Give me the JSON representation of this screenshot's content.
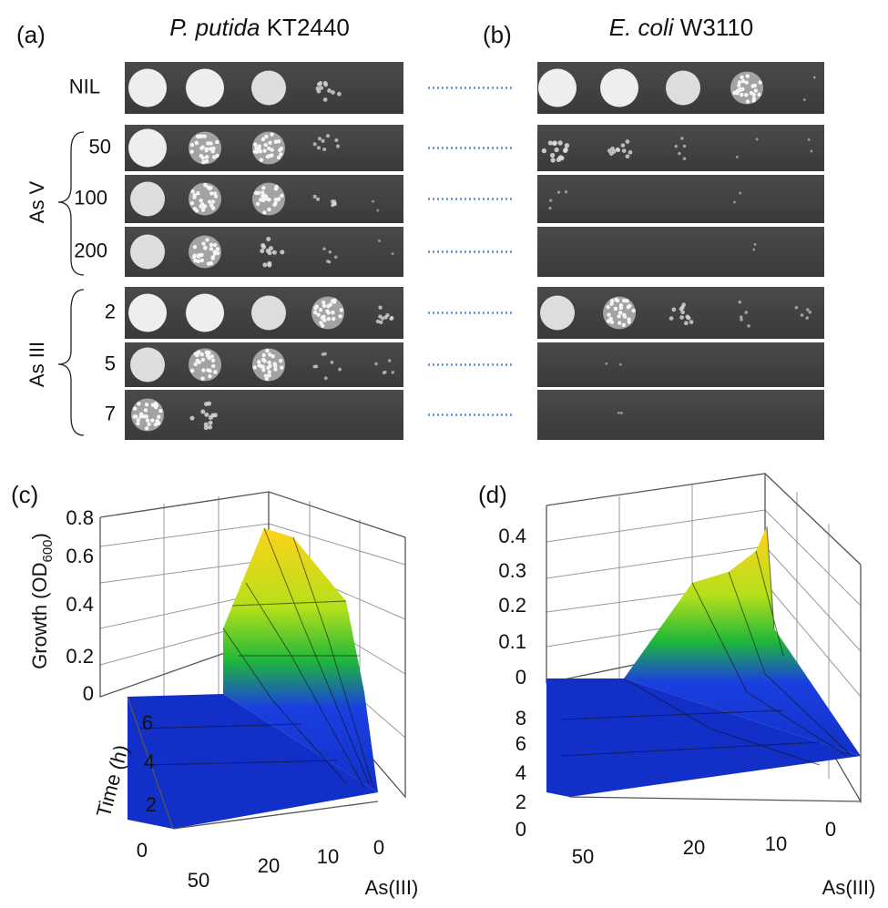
{
  "panel_a": {
    "label": "(a)",
    "title_italic": "P. putida",
    "title_rest": "KT2440"
  },
  "panel_b": {
    "label": "(b)",
    "title_italic": "E. coli",
    "title_rest": "W3110"
  },
  "rows": [
    "NIL",
    "50",
    "100",
    "200",
    "2",
    "5",
    "7"
  ],
  "groups": [
    "As V",
    "As III"
  ],
  "panel_c": {
    "label": "(c)",
    "z_label": "Growth (OD",
    "z_sub": "600",
    "z_close": ")",
    "z_ticks": [
      "0.8",
      "0.6",
      "0.4",
      "0.2",
      "0"
    ],
    "y_label": "Time (h)",
    "y_ticks": [
      "6",
      "4",
      "2",
      "0"
    ],
    "x_ticks": [
      "50",
      "20",
      "10",
      "0"
    ],
    "x_label": "As(III)"
  },
  "panel_d": {
    "label": "(d)",
    "z_ticks": [
      "0.4",
      "0.3",
      "0.2",
      "0.1",
      "0"
    ],
    "y_ticks": [
      "8",
      "6",
      "4",
      "2",
      "0"
    ],
    "x_ticks": [
      "50",
      "20",
      "10",
      "0"
    ],
    "x_label": "As(III)"
  }
}
